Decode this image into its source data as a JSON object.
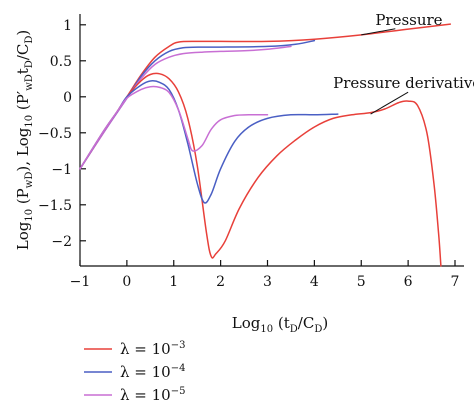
{
  "chart_data": {
    "type": "line",
    "xlabel": "Log10 (tD/CD)",
    "ylabel": "Log10 (PwD), Log10 (P′wDtD/CD)",
    "xlim": [
      -1,
      7
    ],
    "ylim": [
      -2.35,
      1.15
    ],
    "x_ticks": [
      -1,
      0,
      1,
      2,
      3,
      4,
      5,
      6,
      7
    ],
    "y_ticks": [
      1,
      0.5,
      0,
      -0.5,
      -1,
      -1.5,
      -2
    ],
    "x_tick_labels": [
      "−1",
      "0",
      "1",
      "2",
      "3",
      "4",
      "5",
      "6",
      "7"
    ],
    "y_tick_labels": [
      "1",
      "0.5",
      "0",
      "−0.5",
      "−1",
      "−1.5",
      "−2"
    ],
    "grid": false,
    "legend_position": "bottom-left",
    "legend": [
      {
        "label": "λ = 10−3",
        "color": "#e8403a"
      },
      {
        "label": "λ = 10−4",
        "color": "#4a5fc4"
      },
      {
        "label": "λ = 10−5",
        "color": "#c86fd4"
      }
    ],
    "annotations": [
      {
        "text": "Pressure",
        "x": 5.3,
        "y": 1.0,
        "points_to": [
          5.0,
          0.86
        ]
      },
      {
        "text": "Pressure derivative",
        "x": 4.4,
        "y": 0.12,
        "points_to": [
          5.2,
          -0.24
        ]
      }
    ],
    "series": [
      {
        "group": "pressure",
        "lambda": "10−3",
        "color": "#e8403a",
        "x": [
          -1,
          -0.5,
          0,
          0.3,
          0.6,
          0.9,
          1.1,
          1.5,
          2,
          3,
          4,
          5,
          6,
          6.9
        ],
        "y": [
          -1,
          -0.5,
          0,
          0.3,
          0.55,
          0.7,
          0.76,
          0.77,
          0.77,
          0.77,
          0.8,
          0.86,
          0.94,
          1.01
        ]
      },
      {
        "group": "pressure",
        "lambda": "10−4",
        "color": "#4a5fc4",
        "x": [
          -1,
          -0.5,
          0,
          0.3,
          0.6,
          0.9,
          1.2,
          1.6,
          2,
          3,
          3.6,
          4
        ],
        "y": [
          -1,
          -0.5,
          -0.02,
          0.28,
          0.5,
          0.63,
          0.68,
          0.69,
          0.69,
          0.7,
          0.73,
          0.78
        ]
      },
      {
        "group": "pressure",
        "lambda": "10−5",
        "color": "#c86fd4",
        "x": [
          -1,
          -0.5,
          0,
          0.3,
          0.6,
          0.9,
          1.2,
          1.6,
          2,
          2.5,
          3,
          3.5
        ],
        "y": [
          -1,
          -0.5,
          -0.02,
          0.25,
          0.45,
          0.55,
          0.6,
          0.62,
          0.63,
          0.64,
          0.66,
          0.7
        ]
      },
      {
        "group": "derivative",
        "lambda": "10−3",
        "color": "#e8403a",
        "x": [
          -1,
          -0.5,
          -0.2,
          0,
          0.3,
          0.5,
          0.7,
          0.9,
          1.1,
          1.3,
          1.5,
          1.7,
          1.8,
          1.9,
          2.1,
          2.4,
          2.8,
          3.2,
          3.6,
          4,
          4.4,
          4.8,
          5.2,
          5.5,
          5.8,
          6,
          6.2,
          6.4,
          6.55,
          6.65,
          6.7
        ],
        "y": [
          -1,
          -0.48,
          -0.2,
          0,
          0.22,
          0.31,
          0.32,
          0.25,
          0.07,
          -0.3,
          -0.95,
          -1.9,
          -2.22,
          -2.18,
          -2.0,
          -1.55,
          -1.12,
          -0.82,
          -0.6,
          -0.42,
          -0.3,
          -0.25,
          -0.22,
          -0.17,
          -0.08,
          -0.06,
          -0.12,
          -0.5,
          -1.2,
          -1.9,
          -2.35
        ]
      },
      {
        "group": "derivative",
        "lambda": "10−4",
        "color": "#4a5fc4",
        "x": [
          -1,
          -0.5,
          -0.2,
          0,
          0.3,
          0.5,
          0.7,
          0.9,
          1.1,
          1.3,
          1.5,
          1.65,
          1.8,
          2,
          2.3,
          2.6,
          3,
          3.5,
          4,
          4.5
        ],
        "y": [
          -1,
          -0.48,
          -0.2,
          0,
          0.16,
          0.22,
          0.2,
          0.1,
          -0.18,
          -0.65,
          -1.2,
          -1.47,
          -1.35,
          -1.0,
          -0.62,
          -0.42,
          -0.3,
          -0.25,
          -0.25,
          -0.24
        ]
      },
      {
        "group": "derivative",
        "lambda": "10−5",
        "color": "#c86fd4",
        "x": [
          -1,
          -0.5,
          -0.2,
          0,
          0.3,
          0.5,
          0.7,
          0.9,
          1.1,
          1.3,
          1.4,
          1.6,
          1.8,
          2,
          2.3,
          2.6,
          3
        ],
        "y": [
          -1,
          -0.48,
          -0.2,
          -0.02,
          0.1,
          0.14,
          0.13,
          0.06,
          -0.18,
          -0.58,
          -0.75,
          -0.68,
          -0.45,
          -0.32,
          -0.26,
          -0.25,
          -0.25
        ]
      }
    ]
  }
}
